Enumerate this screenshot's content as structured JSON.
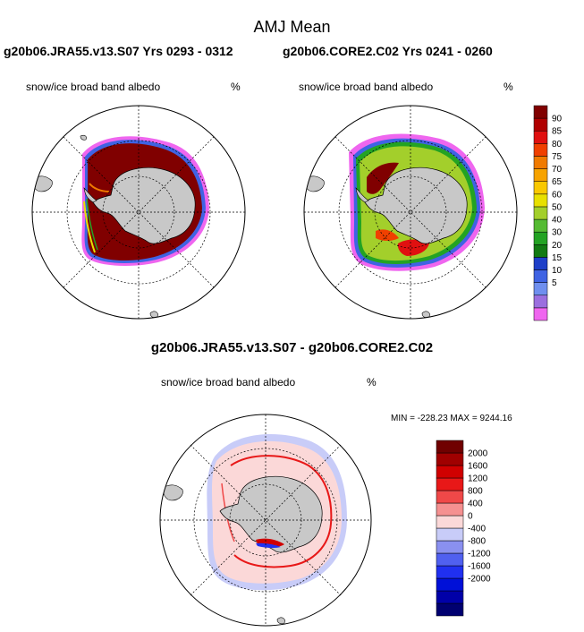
{
  "title": "AMJ Mean",
  "left_case": "g20b06.JRA55.v13.S07  Yrs 0293 - 0312",
  "right_case": "g20b06.CORE2.C02  Yrs 0241 - 0260",
  "diff_title": "g20b06.JRA55.v13.S07 - g20b06.CORE2.C02",
  "variable": "snow/ice broad band albedo",
  "units": "%",
  "diff_stats": "MIN = -228.23 MAX = 9244.16",
  "colors": {
    "land": "#c8c8c8",
    "albedo_scale": [
      "#ef66ef",
      "#9b6fdf",
      "#6f8fef",
      "#3f63e3",
      "#1e3fc8",
      "#127a12",
      "#23a323",
      "#55bb33",
      "#a3cf2b",
      "#e8e000",
      "#f9c800",
      "#f7a300",
      "#f07a00",
      "#f04000",
      "#e01010",
      "#b00000",
      "#800000"
    ],
    "diff_scale": [
      "#000070",
      "#0000a8",
      "#0010d8",
      "#2030f0",
      "#5060f0",
      "#8a90f0",
      "#c8ccf8",
      "#fbd8d8",
      "#f59090",
      "#f04848",
      "#e81818",
      "#d00000",
      "#a00000",
      "#700000"
    ]
  },
  "chart_data": [
    {
      "type": "heatmap",
      "title": "g20b06.JRA55.v13.S07  Yrs 0293 - 0312",
      "variable": "snow/ice broad band albedo",
      "units": "%",
      "projection": "south polar stereographic"
    },
    {
      "type": "heatmap",
      "title": "g20b06.CORE2.C02  Yrs 0241 - 0260",
      "variable": "snow/ice broad band albedo",
      "units": "%",
      "projection": "south polar stereographic",
      "colorbar_ticks": [
        "90",
        "85",
        "80",
        "75",
        "70",
        "65",
        "60",
        "50",
        "40",
        "30",
        "20",
        "15",
        "10",
        "5"
      ]
    },
    {
      "type": "heatmap",
      "title": "g20b06.JRA55.v13.S07 - g20b06.CORE2.C02",
      "variable": "snow/ice broad band albedo",
      "units": "%",
      "projection": "south polar stereographic",
      "min": -228.23,
      "max": 9244.16,
      "colorbar_ticks": [
        "2000",
        "1600",
        "1200",
        "800",
        "400",
        "0",
        "-400",
        "-800",
        "-1200",
        "-1600",
        "-2000"
      ]
    }
  ]
}
